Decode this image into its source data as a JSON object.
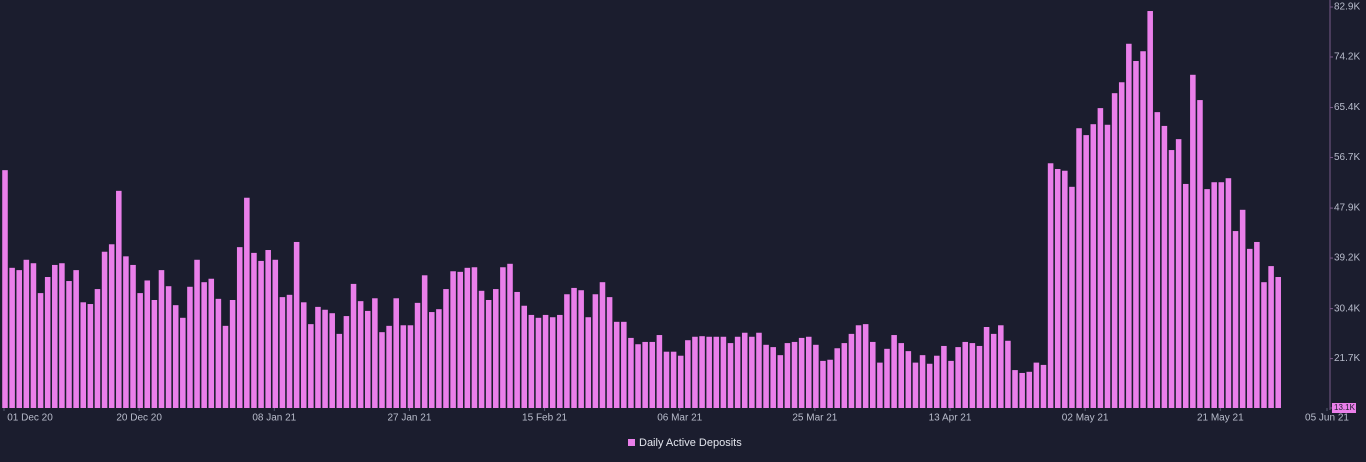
{
  "chart_data": {
    "type": "bar",
    "x": [
      "2020-12-01",
      "2020-12-02",
      "2020-12-03",
      "2020-12-04",
      "2020-12-05",
      "2020-12-06",
      "2020-12-07",
      "2020-12-08",
      "2020-12-09",
      "2020-12-10",
      "2020-12-11",
      "2020-12-12",
      "2020-12-13",
      "2020-12-14",
      "2020-12-15",
      "2020-12-16",
      "2020-12-17",
      "2020-12-18",
      "2020-12-19",
      "2020-12-20",
      "2020-12-21",
      "2020-12-22",
      "2020-12-23",
      "2020-12-24",
      "2020-12-25",
      "2020-12-26",
      "2020-12-27",
      "2020-12-28",
      "2020-12-29",
      "2020-12-30",
      "2020-12-31",
      "2021-01-01",
      "2021-01-02",
      "2021-01-03",
      "2021-01-04",
      "2021-01-05",
      "2021-01-06",
      "2021-01-07",
      "2021-01-08",
      "2021-01-09",
      "2021-01-10",
      "2021-01-11",
      "2021-01-12",
      "2021-01-13",
      "2021-01-14",
      "2021-01-15",
      "2021-01-16",
      "2021-01-17",
      "2021-01-18",
      "2021-01-19",
      "2021-01-20",
      "2021-01-21",
      "2021-01-22",
      "2021-01-23",
      "2021-01-24",
      "2021-01-25",
      "2021-01-26",
      "2021-01-27",
      "2021-01-28",
      "2021-01-29",
      "2021-01-30",
      "2021-01-31",
      "2021-02-01",
      "2021-02-02",
      "2021-02-03",
      "2021-02-04",
      "2021-02-05",
      "2021-02-06",
      "2021-02-07",
      "2021-02-08",
      "2021-02-09",
      "2021-02-10",
      "2021-02-11",
      "2021-02-12",
      "2021-02-13",
      "2021-02-14",
      "2021-02-15",
      "2021-02-16",
      "2021-02-17",
      "2021-02-18",
      "2021-02-19",
      "2021-02-20",
      "2021-02-21",
      "2021-02-22",
      "2021-02-23",
      "2021-02-24",
      "2021-02-25",
      "2021-02-26",
      "2021-02-27",
      "2021-02-28",
      "2021-03-01",
      "2021-03-02",
      "2021-03-03",
      "2021-03-04",
      "2021-03-05",
      "2021-03-06",
      "2021-03-07",
      "2021-03-08",
      "2021-03-09",
      "2021-03-10",
      "2021-03-11",
      "2021-03-12",
      "2021-03-13",
      "2021-03-14",
      "2021-03-15",
      "2021-03-16",
      "2021-03-17",
      "2021-03-18",
      "2021-03-19",
      "2021-03-20",
      "2021-03-21",
      "2021-03-22",
      "2021-03-23",
      "2021-03-24",
      "2021-03-25",
      "2021-03-26",
      "2021-03-27",
      "2021-03-28",
      "2021-03-29",
      "2021-03-30",
      "2021-03-31",
      "2021-04-01",
      "2021-04-02",
      "2021-04-03",
      "2021-04-04",
      "2021-04-05",
      "2021-04-06",
      "2021-04-07",
      "2021-04-08",
      "2021-04-09",
      "2021-04-10",
      "2021-04-11",
      "2021-04-12",
      "2021-04-13",
      "2021-04-14",
      "2021-04-15",
      "2021-04-16",
      "2021-04-17",
      "2021-04-18",
      "2021-04-19",
      "2021-04-20",
      "2021-04-21",
      "2021-04-22",
      "2021-04-23",
      "2021-04-24",
      "2021-04-25",
      "2021-04-26",
      "2021-04-27",
      "2021-04-28",
      "2021-04-29",
      "2021-04-30",
      "2021-05-01",
      "2021-05-02",
      "2021-05-03",
      "2021-05-04",
      "2021-05-05",
      "2021-05-06",
      "2021-05-07",
      "2021-05-08",
      "2021-05-09",
      "2021-05-10",
      "2021-05-11",
      "2021-05-12",
      "2021-05-13",
      "2021-05-14",
      "2021-05-15",
      "2021-05-16",
      "2021-05-17",
      "2021-05-18",
      "2021-05-19",
      "2021-05-20",
      "2021-05-21",
      "2021-05-22",
      "2021-05-23",
      "2021-05-24",
      "2021-05-25",
      "2021-05-26",
      "2021-05-27",
      "2021-05-28",
      "2021-05-29"
    ],
    "series": [
      {
        "name": "Daily Active Deposits",
        "color": "#ea7fea",
        "values": [
          54500,
          37500,
          37100,
          38900,
          38300,
          33100,
          35900,
          38000,
          38300,
          35200,
          37100,
          31500,
          31200,
          33800,
          40300,
          41600,
          50900,
          39500,
          38000,
          33100,
          35300,
          31900,
          37100,
          34300,
          31000,
          28800,
          34200,
          38900,
          35000,
          35600,
          32100,
          27400,
          31900,
          41100,
          49700,
          40100,
          38700,
          40600,
          38900,
          32400,
          32800,
          42000,
          31500,
          27700,
          30700,
          30200,
          29600,
          26000,
          29100,
          34700,
          31700,
          30000,
          32200,
          26300,
          27400,
          32200,
          27500,
          27500,
          31400,
          36200,
          29800,
          30300,
          33800,
          36900,
          36800,
          37500,
          37600,
          33500,
          31900,
          33800,
          37600,
          38200,
          33300,
          30900,
          29300,
          28800,
          29300,
          28900,
          29300,
          32900,
          34000,
          33600,
          28900,
          32900,
          35000,
          32400,
          28100,
          28100,
          25300,
          24200,
          24600,
          24600,
          25800,
          22900,
          22900,
          22200,
          24900,
          25500,
          25600,
          25500,
          25500,
          25500,
          24400,
          25500,
          26200,
          25500,
          26200,
          24100,
          23700,
          22300,
          24400,
          24600,
          25300,
          25500,
          24100,
          21300,
          21500,
          23500,
          24400,
          26000,
          27500,
          27700,
          24600,
          21000,
          23400,
          25800,
          24400,
          23000,
          21000,
          22300,
          20800,
          22200,
          23900,
          21300,
          23700,
          24600,
          24400,
          23900,
          27200,
          26000,
          27500,
          24800,
          19700,
          19200,
          19400,
          21000,
          20600,
          55700,
          54700,
          54400,
          51600,
          61800,
          60600,
          62500,
          65300,
          62400,
          67900,
          69800,
          76500,
          73500,
          75200,
          82200,
          64600,
          62200,
          58000,
          59900,
          52100,
          71100,
          66700,
          51200,
          52400,
          52400,
          53100,
          43900,
          47600,
          40800,
          42000,
          35000,
          37800,
          35900
        ]
      }
    ],
    "ylim": [
      13100,
      82900
    ],
    "yticks": [
      {
        "value": 13100,
        "label": "13.1K"
      },
      {
        "value": 21700,
        "label": "21.7K"
      },
      {
        "value": 30400,
        "label": "30.4K"
      },
      {
        "value": 39200,
        "label": "39.2K"
      },
      {
        "value": 47900,
        "label": "47.9K"
      },
      {
        "value": 56700,
        "label": "56.7K"
      },
      {
        "value": 65400,
        "label": "65.4K"
      },
      {
        "value": 74200,
        "label": "74.2K"
      },
      {
        "value": 82900,
        "label": "82.9K"
      }
    ],
    "xticks": [
      {
        "value": "2020-12-01",
        "label": "01 Dec 20"
      },
      {
        "value": "2020-12-20",
        "label": "20 Dec 20"
      },
      {
        "value": "2021-01-08",
        "label": "08 Jan 21"
      },
      {
        "value": "2021-01-27",
        "label": "27 Jan 21"
      },
      {
        "value": "2021-02-15",
        "label": "15 Feb 21"
      },
      {
        "value": "2021-03-06",
        "label": "06 Mar 21"
      },
      {
        "value": "2021-03-25",
        "label": "25 Mar 21"
      },
      {
        "value": "2021-04-13",
        "label": "13 Apr 21"
      },
      {
        "value": "2021-05-02",
        "label": "02 May 21"
      },
      {
        "value": "2021-05-21",
        "label": "21 May 21"
      },
      {
        "value": "2021-06-05",
        "label": "05 Jun 21"
      }
    ],
    "xlim": [
      "2020-12-01",
      "2021-06-05"
    ],
    "legend": "bottom"
  }
}
